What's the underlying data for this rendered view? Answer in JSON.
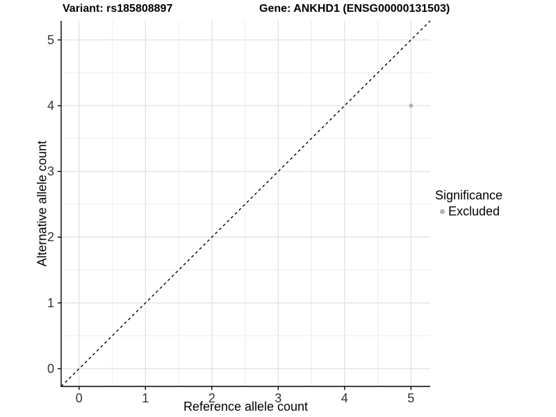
{
  "chart_data": {
    "type": "scatter",
    "title_left": "Variant: rs185808897",
    "title_right": "Gene: ANKHD1 (ENSG00000131503)",
    "xlabel": "Reference allele count",
    "ylabel": "Alternative allele count",
    "xlim": [
      -0.27,
      5.29
    ],
    "ylim": [
      -0.27,
      5.29
    ],
    "xticks": [
      0,
      1,
      2,
      3,
      4,
      5
    ],
    "yticks": [
      0,
      1,
      2,
      3,
      4,
      5
    ],
    "x_minor_ticks": [
      0.5,
      1.5,
      2.5,
      3.5,
      4.5
    ],
    "y_minor_ticks": [
      0.5,
      1.5,
      2.5,
      3.5,
      4.5
    ],
    "grid": true,
    "series": [
      {
        "name": "Excluded",
        "color": "#b2b2b2",
        "marker_radius": 3,
        "points": [
          {
            "x": 5,
            "y": 4
          }
        ]
      }
    ],
    "reference_line": {
      "type": "identity",
      "style": "dashed",
      "color": "#000000",
      "from": [
        -0.27,
        -0.27
      ],
      "to": [
        5.29,
        5.29
      ]
    },
    "legend": {
      "title": "Significance",
      "position": "right",
      "items": [
        {
          "label": "Excluded",
          "color": "#b2b2b2"
        }
      ]
    }
  },
  "colors": {
    "background": "#ffffff",
    "grid_major": "#e3e3e3",
    "grid_minor": "#f0f0f0",
    "axis_line": "#000000",
    "tick_label": "#333333"
  }
}
